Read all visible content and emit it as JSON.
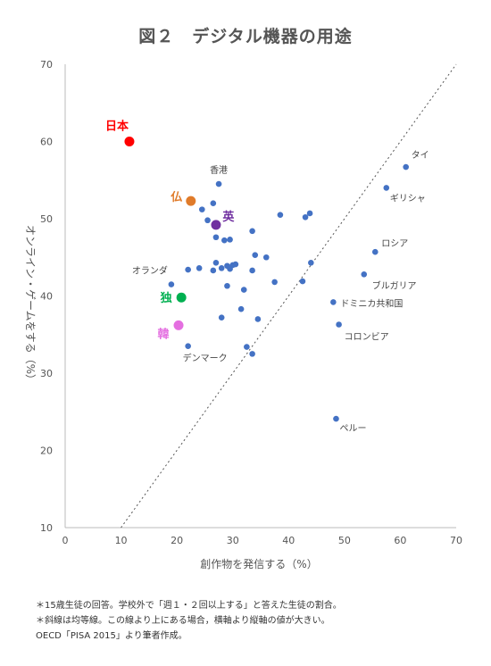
{
  "title": "図２　デジタル機器の用途",
  "notes": [
    "＊15歳生徒の回答。学校外で「週１・２回以上する」と答えた生徒の割合。",
    "＊斜線は均等線。この線より上にある場合，横軸より縦軸の値が大きい。",
    "OECD「PISA 2015」より筆者作成。"
  ],
  "chart_data": {
    "type": "scatter",
    "title": "図２　デジタル機器の用途",
    "xlabel": "創作物を発信する（%）",
    "ylabel": "オンライン・ゲームをする（%）",
    "xlim": [
      0,
      70
    ],
    "ylim": [
      10,
      70
    ],
    "xticks": [
      0,
      10,
      20,
      30,
      40,
      50,
      60,
      70
    ],
    "yticks": [
      10,
      20,
      30,
      40,
      50,
      60,
      70
    ],
    "grid": false,
    "reference_line": "y = x",
    "colors": {
      "default": "#4472c4",
      "line": "#555555"
    },
    "highlighted": [
      {
        "label": "日本",
        "x": 11.5,
        "y": 60.0,
        "color": "#ff0000"
      },
      {
        "label": "仏",
        "x": 22.5,
        "y": 52.3,
        "color": "#e07b2a"
      },
      {
        "label": "英",
        "x": 27.0,
        "y": 49.2,
        "color": "#7030a0"
      },
      {
        "label": "独",
        "x": 20.8,
        "y": 39.8,
        "color": "#00b050"
      },
      {
        "label": "韓",
        "x": 20.3,
        "y": 36.2,
        "color": "#e46fe0"
      }
    ],
    "labeled": [
      {
        "label": "タイ",
        "x": 61.0,
        "y": 56.7
      },
      {
        "label": "香港",
        "x": 27.5,
        "y": 54.5
      },
      {
        "label": "ギリシャ",
        "x": 57.5,
        "y": 54.0
      },
      {
        "label": "ロシア",
        "x": 55.5,
        "y": 45.7
      },
      {
        "label": "ブルガリア",
        "x": 53.5,
        "y": 42.8
      },
      {
        "label": "オランダ",
        "x": 19.0,
        "y": 41.5
      },
      {
        "label": "ドミニカ共和国",
        "x": 48.0,
        "y": 39.2
      },
      {
        "label": "コロンビア",
        "x": 49.0,
        "y": 36.3
      },
      {
        "label": "デンマーク",
        "x": 22.0,
        "y": 33.5
      },
      {
        "label": "ペルー",
        "x": 48.5,
        "y": 24.1
      }
    ],
    "points": [
      [
        26.5,
        52.0
      ],
      [
        24.5,
        51.2
      ],
      [
        25.5,
        49.8
      ],
      [
        27.0,
        47.6
      ],
      [
        28.5,
        47.2
      ],
      [
        29.5,
        47.3
      ],
      [
        33.5,
        48.4
      ],
      [
        38.5,
        50.5
      ],
      [
        43.0,
        50.2
      ],
      [
        43.8,
        50.7
      ],
      [
        34.0,
        45.3
      ],
      [
        36.0,
        45.0
      ],
      [
        27.0,
        44.3
      ],
      [
        29.0,
        43.9
      ],
      [
        30.0,
        44.0
      ],
      [
        30.5,
        44.1
      ],
      [
        26.5,
        43.3
      ],
      [
        28.0,
        43.6
      ],
      [
        29.5,
        43.5
      ],
      [
        24.0,
        43.6
      ],
      [
        22.0,
        43.4
      ],
      [
        33.5,
        43.3
      ],
      [
        29.0,
        41.3
      ],
      [
        32.0,
        40.8
      ],
      [
        37.5,
        41.8
      ],
      [
        42.5,
        41.9
      ],
      [
        44.0,
        44.3
      ],
      [
        31.5,
        38.3
      ],
      [
        28.0,
        37.2
      ],
      [
        34.5,
        37.0
      ],
      [
        32.5,
        33.4
      ],
      [
        33.5,
        32.5
      ]
    ]
  }
}
